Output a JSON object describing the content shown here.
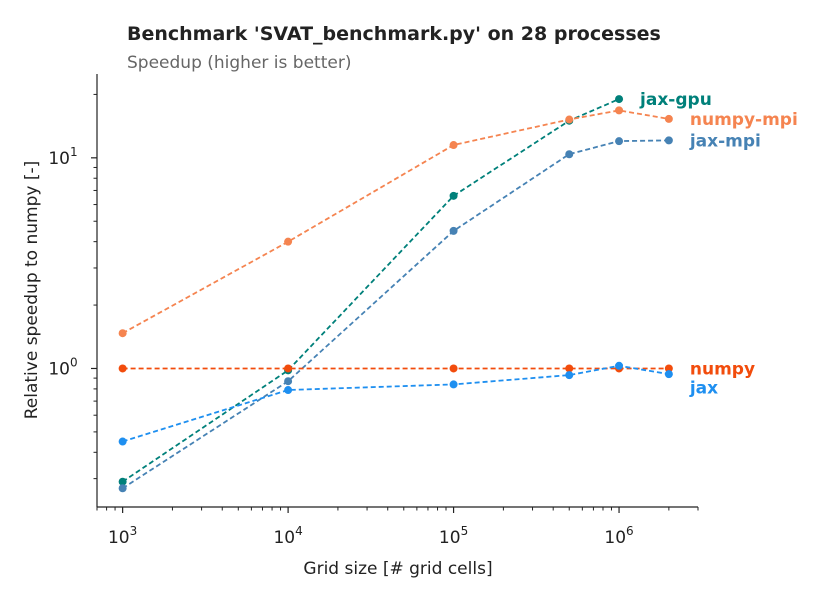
{
  "chart_data": {
    "type": "line",
    "title": "Benchmark 'SVAT_benchmark.py' on 28 processes",
    "subtitle": "Speedup (higher is better)",
    "xlabel": "Grid size [# grid cells]",
    "ylabel": "Relative speedup to numpy [-]",
    "xscale": "log",
    "yscale": "log",
    "xlim": [
      700,
      3000000
    ],
    "ylim": [
      0.22,
      25
    ],
    "x_ticks": [
      {
        "value": 1000,
        "base": "10",
        "exp": "3"
      },
      {
        "value": 10000,
        "base": "10",
        "exp": "4"
      },
      {
        "value": 100000,
        "base": "10",
        "exp": "5"
      },
      {
        "value": 1000000,
        "base": "10",
        "exp": "6"
      }
    ],
    "y_ticks": [
      {
        "value": 1,
        "base": "10",
        "exp": "0"
      },
      {
        "value": 10,
        "base": "10",
        "exp": "1"
      }
    ],
    "grid": false,
    "legend": "inline labels at line ends",
    "series": [
      {
        "name": "jax-gpu",
        "color": "#00807a",
        "x": [
          1000,
          10000,
          100000,
          500000,
          1000000
        ],
        "y": [
          0.29,
          0.98,
          6.6,
          15.0,
          19.0
        ]
      },
      {
        "name": "numpy-mpi",
        "color": "#f58450",
        "x": [
          1000,
          10000,
          100000,
          500000,
          1000000,
          2000000
        ],
        "y": [
          1.47,
          4.0,
          11.5,
          15.2,
          16.8,
          15.3
        ]
      },
      {
        "name": "jax-mpi",
        "color": "#4682b4",
        "x": [
          1000,
          10000,
          100000,
          500000,
          1000000,
          2000000
        ],
        "y": [
          0.27,
          0.87,
          4.5,
          10.4,
          12.0,
          12.1
        ]
      },
      {
        "name": "numpy",
        "color": "#f24c0c",
        "x": [
          1000,
          10000,
          100000,
          500000,
          1000000,
          2000000
        ],
        "y": [
          1.0,
          1.0,
          1.0,
          1.0,
          1.0,
          1.0
        ]
      },
      {
        "name": "jax",
        "color": "#1e8ff0",
        "x": [
          1000,
          10000,
          100000,
          500000,
          1000000,
          2000000
        ],
        "y": [
          0.45,
          0.79,
          0.84,
          0.93,
          1.03,
          0.94
        ]
      }
    ]
  }
}
